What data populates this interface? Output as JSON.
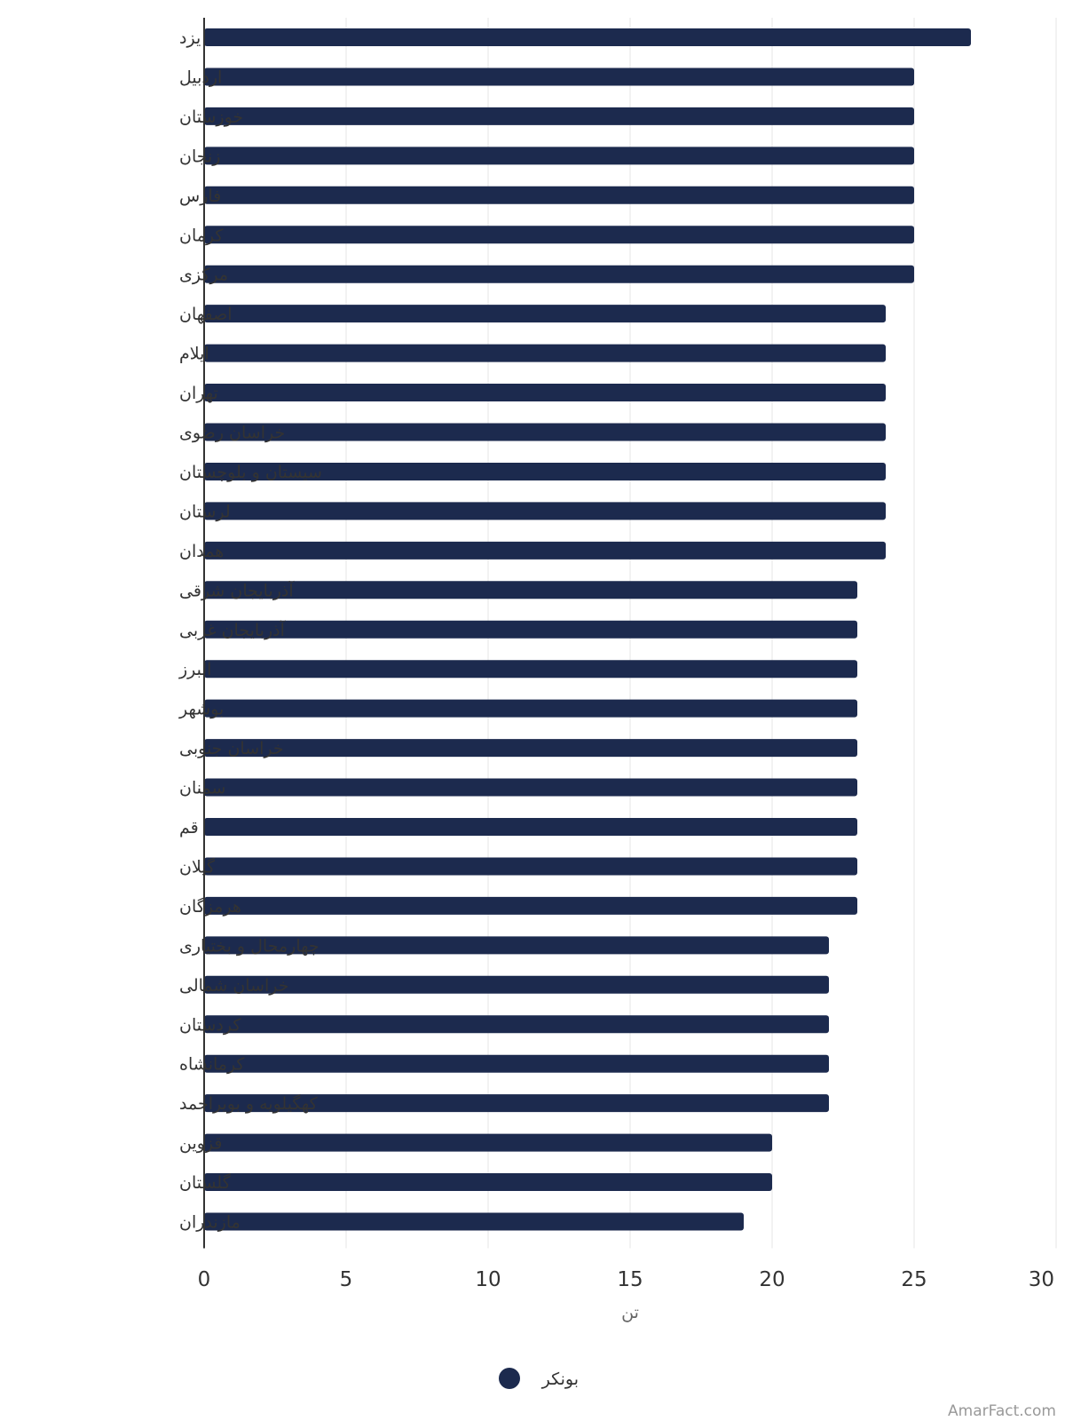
{
  "chart_data": {
    "type": "bar",
    "orientation": "horizontal",
    "title": "",
    "xlabel": "تن",
    "ylabel": "",
    "xlim": [
      0,
      30
    ],
    "x_ticks": [
      0,
      5,
      10,
      15,
      20,
      25,
      30
    ],
    "grid": true,
    "legend_position": "bottom-center",
    "series": [
      {
        "name": "بونکر",
        "color": "#1c2a4e",
        "values": [
          27,
          25,
          25,
          25,
          25,
          25,
          25,
          24,
          24,
          24,
          24,
          24,
          24,
          24,
          23,
          23,
          23,
          23,
          23,
          23,
          23,
          23,
          23,
          22,
          22,
          22,
          22,
          22,
          20,
          20,
          19
        ]
      }
    ],
    "categories": [
      "یزد",
      "اردبیل",
      "خوزستان",
      "زنجان",
      "فارس",
      "کرمان",
      "مرکزی",
      "اصفهان",
      "ایلام",
      "تهران",
      "خراسان رضوی",
      "سیستان و بلوچستان",
      "لرستان",
      "همدان",
      "آذربایجان شرقی",
      "آذربایجان غربی",
      "البرز",
      "بوشهر",
      "خراسان جنوبی",
      "سمنان",
      "قم",
      "گیلان",
      "هرمزگان",
      "چهارمحال و بختیاری",
      "خراسان شمالی",
      "کردستان",
      "کرمانشاه",
      "کهگیلویه و بویراحمد",
      "قزوین",
      "گلستان",
      "مازندران"
    ]
  },
  "credit": "AmarFact.com",
  "colors": {
    "bar": "#1c2a4e",
    "grid": "#e6e6e6",
    "axis": "#333333"
  }
}
